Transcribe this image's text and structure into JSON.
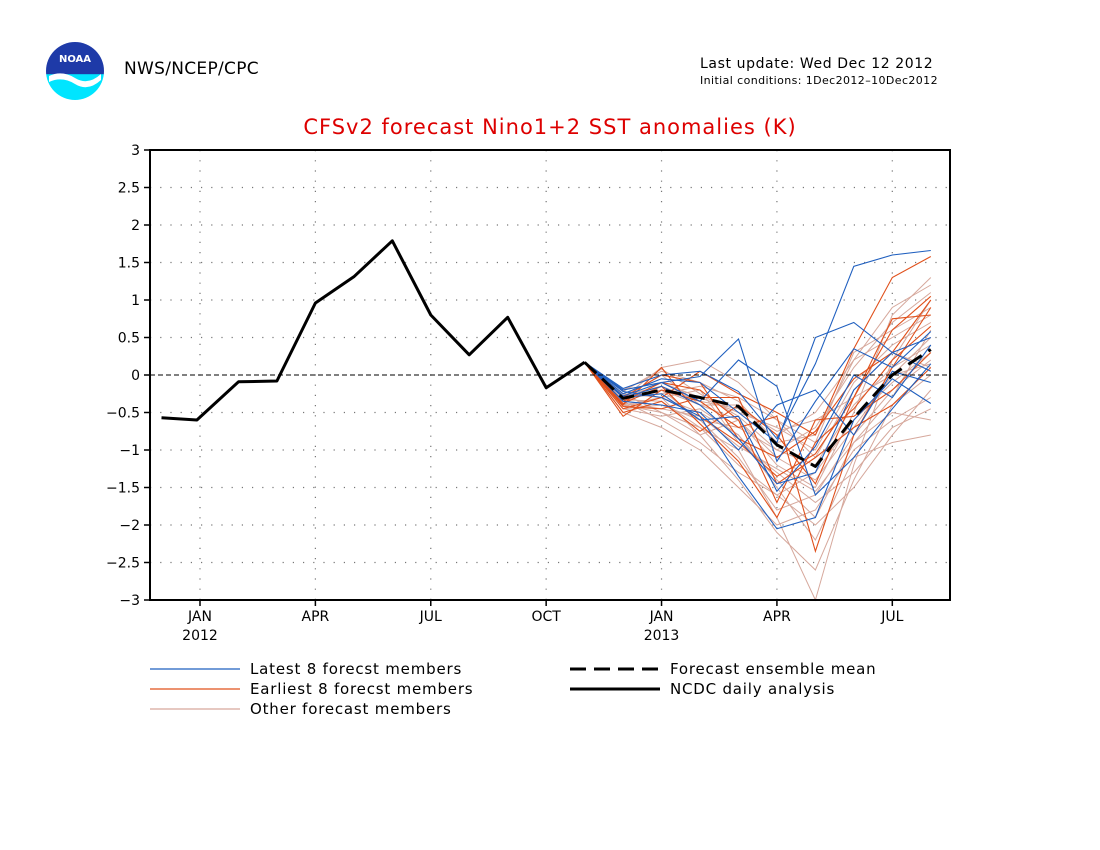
{
  "header": {
    "agency": "NWS/NCEP/CPC",
    "last_update": "Last update: Wed Dec 12 2012",
    "initial_conditions": "Initial conditions: 1Dec2012–10Dec2012",
    "logo_text": "NOAA",
    "logo_icon": "noaa-logo-icon"
  },
  "chart_data": {
    "type": "line",
    "title": "CFSv2 forecast Nino1+2 SST anomalies (K)",
    "title_color": "#dd0000",
    "xlabel": "",
    "ylabel": "",
    "ylim": [
      -3,
      3
    ],
    "yticks": [
      3,
      2.5,
      2,
      1.5,
      1,
      0.5,
      0,
      -0.5,
      -1,
      -1.5,
      -2,
      -2.5,
      -3
    ],
    "ytick_labels": [
      "3",
      "2.5",
      "2",
      "1.5",
      "1",
      "0.5",
      "0",
      "−0.5",
      "−1",
      "−1.5",
      "−2",
      "−2.5",
      "−3"
    ],
    "xlim": [
      -1.3,
      19.5
    ],
    "xticks": [
      {
        "x": 0,
        "label": "JAN",
        "sublabel": "2012"
      },
      {
        "x": 3,
        "label": "APR",
        "sublabel": ""
      },
      {
        "x": 6,
        "label": "JUL",
        "sublabel": ""
      },
      {
        "x": 9,
        "label": "OCT",
        "sublabel": ""
      },
      {
        "x": 12,
        "label": "JAN",
        "sublabel": "2013"
      },
      {
        "x": 15,
        "label": "APR",
        "sublabel": ""
      },
      {
        "x": 18,
        "label": "JUL",
        "sublabel": ""
      }
    ],
    "grid": true,
    "zero_line": true,
    "colors": {
      "latest": "#1f5fbf",
      "earliest": "#e0501b",
      "other": "#d6a89c",
      "mean": "#000000",
      "observed": "#000000"
    },
    "series": [
      {
        "name": "NCDC daily analysis",
        "role": "observed",
        "x": [
          -1,
          -0.08,
          1,
          2,
          3,
          4,
          5,
          6,
          7,
          8,
          9,
          10
        ],
        "y": [
          -0.57,
          -0.6,
          -0.09,
          -0.08,
          0.96,
          1.31,
          1.79,
          0.8,
          0.27,
          0.77,
          -0.17,
          0.17
        ]
      },
      {
        "name": "Forecast ensemble mean",
        "role": "mean",
        "x": [
          10,
          11,
          12,
          13,
          14,
          15,
          16,
          17,
          18,
          19
        ],
        "y": [
          0.17,
          -0.31,
          -0.2,
          -0.3,
          -0.42,
          -0.93,
          -1.22,
          -0.57,
          0.0,
          0.34
        ]
      }
    ],
    "members": {
      "latest": {
        "x": [
          10,
          11,
          12,
          13,
          14,
          15,
          16,
          17,
          18,
          19
        ],
        "y": [
          [
            0.17,
            -0.18,
            0.0,
            0.05,
            -0.22,
            -0.85,
            0.15,
            1.45,
            1.6,
            1.66
          ],
          [
            0.17,
            -0.2,
            -0.1,
            -0.02,
            0.48,
            -1.15,
            -0.35,
            0.35,
            0.1,
            0.58
          ],
          [
            0.17,
            -0.22,
            -0.3,
            -0.55,
            -1.35,
            -2.05,
            -1.9,
            -0.6,
            -0.05,
            -0.38
          ],
          [
            0.17,
            -0.3,
            -0.15,
            -0.4,
            -0.85,
            -1.45,
            -1.3,
            -0.2,
            0.3,
            0.05
          ],
          [
            0.17,
            -0.25,
            -0.05,
            -0.1,
            -0.5,
            -0.9,
            0.5,
            0.7,
            0.3,
            0.5
          ],
          [
            0.17,
            -0.3,
            -0.25,
            -0.6,
            -0.55,
            -1.55,
            -0.95,
            0.0,
            -0.3,
            0.4
          ],
          [
            0.17,
            -0.28,
            -0.1,
            -0.35,
            0.2,
            -0.15,
            -1.6,
            -1.1,
            -0.45,
            0.15
          ],
          [
            0.17,
            -0.35,
            -0.4,
            -0.5,
            -1.0,
            -0.4,
            -0.2,
            -0.8,
            0.05,
            -0.1
          ]
        ]
      },
      "earliest": {
        "x": [
          10,
          11,
          12,
          13,
          14,
          15,
          16,
          17,
          18,
          19
        ],
        "y": [
          [
            0.17,
            -0.55,
            -0.2,
            -0.35,
            -0.7,
            -0.55,
            -2.35,
            -0.8,
            0.1,
            0.9
          ],
          [
            0.17,
            -0.45,
            -0.3,
            0.05,
            -0.25,
            -0.5,
            -0.8,
            0.35,
            1.3,
            1.58
          ],
          [
            0.17,
            -0.4,
            0.1,
            -0.55,
            -0.9,
            -1.35,
            -1.05,
            -0.3,
            0.6,
            1.05
          ],
          [
            0.17,
            -0.35,
            -0.1,
            -0.2,
            -0.6,
            -1.7,
            -0.6,
            -0.55,
            -0.2,
            0.3
          ],
          [
            0.17,
            -0.5,
            -0.35,
            -0.75,
            -0.4,
            -0.8,
            -1.45,
            -0.3,
            0.75,
            0.8
          ],
          [
            0.17,
            -0.3,
            0.0,
            -0.1,
            -0.85,
            -1.1,
            -0.75,
            -0.05,
            0.3,
            1.0
          ],
          [
            0.17,
            -0.42,
            -0.45,
            -0.3,
            -0.3,
            -1.45,
            -1.1,
            -0.7,
            -0.4,
            0.1
          ],
          [
            0.17,
            -0.38,
            -0.15,
            -0.65,
            -1.15,
            -1.9,
            -0.9,
            -0.45,
            0.2,
            0.65
          ]
        ]
      },
      "other": {
        "x": [
          10,
          11,
          12,
          13,
          14,
          15,
          16,
          17,
          18,
          19
        ],
        "y": [
          [
            0.17,
            -0.4,
            -0.5,
            -0.7,
            -1.0,
            -1.9,
            -3.0,
            -1.2,
            0.2,
            1.0
          ],
          [
            0.17,
            -0.3,
            -0.2,
            -0.4,
            -0.6,
            -1.2,
            -1.5,
            -0.5,
            0.8,
            1.3
          ],
          [
            0.17,
            -0.2,
            0.05,
            -0.1,
            -0.35,
            -0.9,
            -0.8,
            0.2,
            0.9,
            1.2
          ],
          [
            0.17,
            -0.35,
            -0.6,
            -0.9,
            -1.3,
            -1.6,
            -2.0,
            -1.5,
            -0.8,
            -0.2
          ],
          [
            0.17,
            -0.25,
            -0.3,
            -0.5,
            -0.8,
            -1.4,
            -1.9,
            -0.9,
            -0.3,
            0.6
          ],
          [
            0.17,
            -0.45,
            -0.4,
            -0.6,
            -0.7,
            -1.0,
            -1.2,
            -0.4,
            0.1,
            0.4
          ],
          [
            0.17,
            -0.3,
            0.1,
            0.2,
            -0.1,
            -0.6,
            -0.9,
            0.3,
            0.6,
            0.9
          ],
          [
            0.17,
            -0.5,
            -0.7,
            -1.0,
            -1.5,
            -2.0,
            -1.8,
            -1.0,
            -0.6,
            -0.3
          ],
          [
            0.17,
            -0.2,
            -0.1,
            -0.3,
            -0.5,
            -0.7,
            -1.0,
            -0.1,
            0.4,
            0.7
          ],
          [
            0.17,
            -0.4,
            -0.3,
            -0.2,
            -0.9,
            -1.3,
            -1.7,
            -1.3,
            -0.7,
            -0.45
          ],
          [
            0.17,
            -0.25,
            -0.5,
            -0.8,
            -0.6,
            -1.1,
            -1.4,
            -0.7,
            0.0,
            0.5
          ],
          [
            0.17,
            -0.35,
            -0.2,
            -0.6,
            -1.1,
            -1.8,
            -1.6,
            -0.8,
            -0.2,
            0.2
          ],
          [
            0.17,
            -0.3,
            0.0,
            -0.4,
            -0.4,
            -0.8,
            -0.5,
            0.2,
            0.5,
            0.8
          ],
          [
            0.17,
            -0.45,
            -0.55,
            -0.45,
            -0.8,
            -1.5,
            -2.2,
            -1.1,
            -0.9,
            -0.8
          ],
          [
            0.17,
            -0.28,
            -0.25,
            -0.15,
            -0.3,
            -0.6,
            -1.1,
            -0.2,
            0.3,
            0.1
          ],
          [
            0.17,
            -0.33,
            -0.35,
            -0.7,
            -1.2,
            -1.6,
            -1.3,
            -0.6,
            -0.1,
            0.3
          ],
          [
            0.17,
            -0.22,
            0.08,
            -0.25,
            -0.55,
            -1.0,
            -0.7,
            0.1,
            0.7,
            1.1
          ],
          [
            0.17,
            -0.38,
            -0.45,
            -0.55,
            -0.95,
            -1.25,
            -1.55,
            -0.9,
            -0.5,
            -0.6
          ],
          [
            0.17,
            -0.27,
            -0.15,
            -0.35,
            -0.45,
            -0.75,
            -0.6,
            -0.3,
            0.0,
            0.15
          ],
          [
            0.17,
            -0.42,
            -0.3,
            -0.8,
            -1.4,
            -2.1,
            -2.6,
            -1.4,
            -0.4,
            0.0
          ]
        ]
      }
    },
    "legend": {
      "placement": "bottom",
      "items": [
        {
          "label": "Latest 8 forecst members",
          "role": "latest"
        },
        {
          "label": "Earliest 8 forecst members",
          "role": "earliest"
        },
        {
          "label": "Other forecast members",
          "role": "other"
        },
        {
          "label": "Forecast ensemble mean",
          "role": "mean"
        },
        {
          "label": "NCDC daily analysis",
          "role": "observed"
        }
      ]
    }
  }
}
